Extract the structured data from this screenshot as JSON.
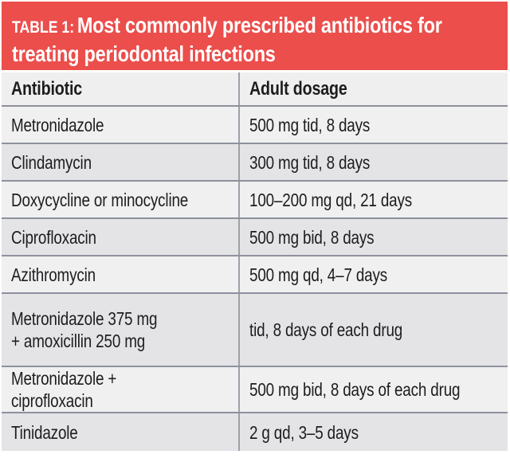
{
  "colors": {
    "accent_red": "#EB4E4B",
    "banner_text": "#FFFFFF",
    "row_light": "#F0F0F1",
    "row_dark": "#E4E4E7",
    "header_row_bg": "#EFEFEF",
    "row_separator": "#8E919D",
    "column_divider": "#9EA0A9",
    "body_text": "#1D1D1F"
  },
  "banner": {
    "label": "TABLE 1:",
    "title_line1": "Most commonly prescribed antibiotics for",
    "title_line2": "treating periodontal infections"
  },
  "table": {
    "columns": {
      "antibiotic": "Antibiotic",
      "dosage": "Adult dosage"
    },
    "rows": [
      {
        "antibiotic": "Metronidazole",
        "dosage": "500 mg tid, 8 days"
      },
      {
        "antibiotic": "Clindamycin",
        "dosage": "300 mg tid, 8 days"
      },
      {
        "antibiotic": "Doxycycline or minocycline",
        "dosage": "100–200 mg qd, 21 days"
      },
      {
        "antibiotic": "Ciprofloxacin",
        "dosage": "500 mg bid, 8 days"
      },
      {
        "antibiotic": "Azithromycin",
        "dosage": "500 mg qd, 4–7 days"
      },
      {
        "antibiotic": "Metronidazole 375 mg\n+ amoxicillin 250 mg",
        "dosage": "tid, 8 days of each drug"
      },
      {
        "antibiotic": "Metronidazole + ciprofloxacin",
        "dosage": "500 mg bid, 8 days of each drug"
      },
      {
        "antibiotic": "Tinidazole",
        "dosage": "2 g qd, 3–5 days"
      }
    ]
  }
}
